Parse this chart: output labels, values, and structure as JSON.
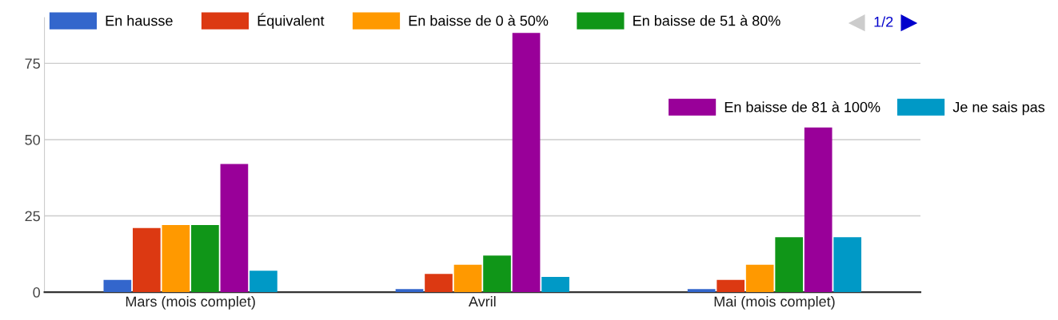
{
  "chart_data": {
    "type": "bar",
    "categories": [
      "Mars (mois complet)",
      "Avril",
      "Mai (mois complet)"
    ],
    "series": [
      {
        "name": "En hausse",
        "color": "#3366cc",
        "values": [
          4,
          1,
          1
        ]
      },
      {
        "name": "Équivalent",
        "color": "#dc3912",
        "values": [
          21,
          6,
          4
        ]
      },
      {
        "name": "En baisse de 0 à 50%",
        "color": "#ff9900",
        "values": [
          22,
          9,
          9
        ]
      },
      {
        "name": "En baisse de 51 à 80%",
        "color": "#109618",
        "values": [
          22,
          12,
          18
        ]
      },
      {
        "name": "En baisse de 81 à 100%",
        "color": "#990099",
        "values": [
          42,
          85,
          54
        ]
      },
      {
        "name": "Je ne sais pas",
        "color": "#0099c6",
        "values": [
          7,
          5,
          18
        ]
      }
    ],
    "ylim": [
      0,
      90
    ],
    "yticks": [
      0,
      25,
      50,
      75
    ],
    "grid": "y",
    "legend": "top",
    "annotations": [
      "1/2"
    ]
  }
}
